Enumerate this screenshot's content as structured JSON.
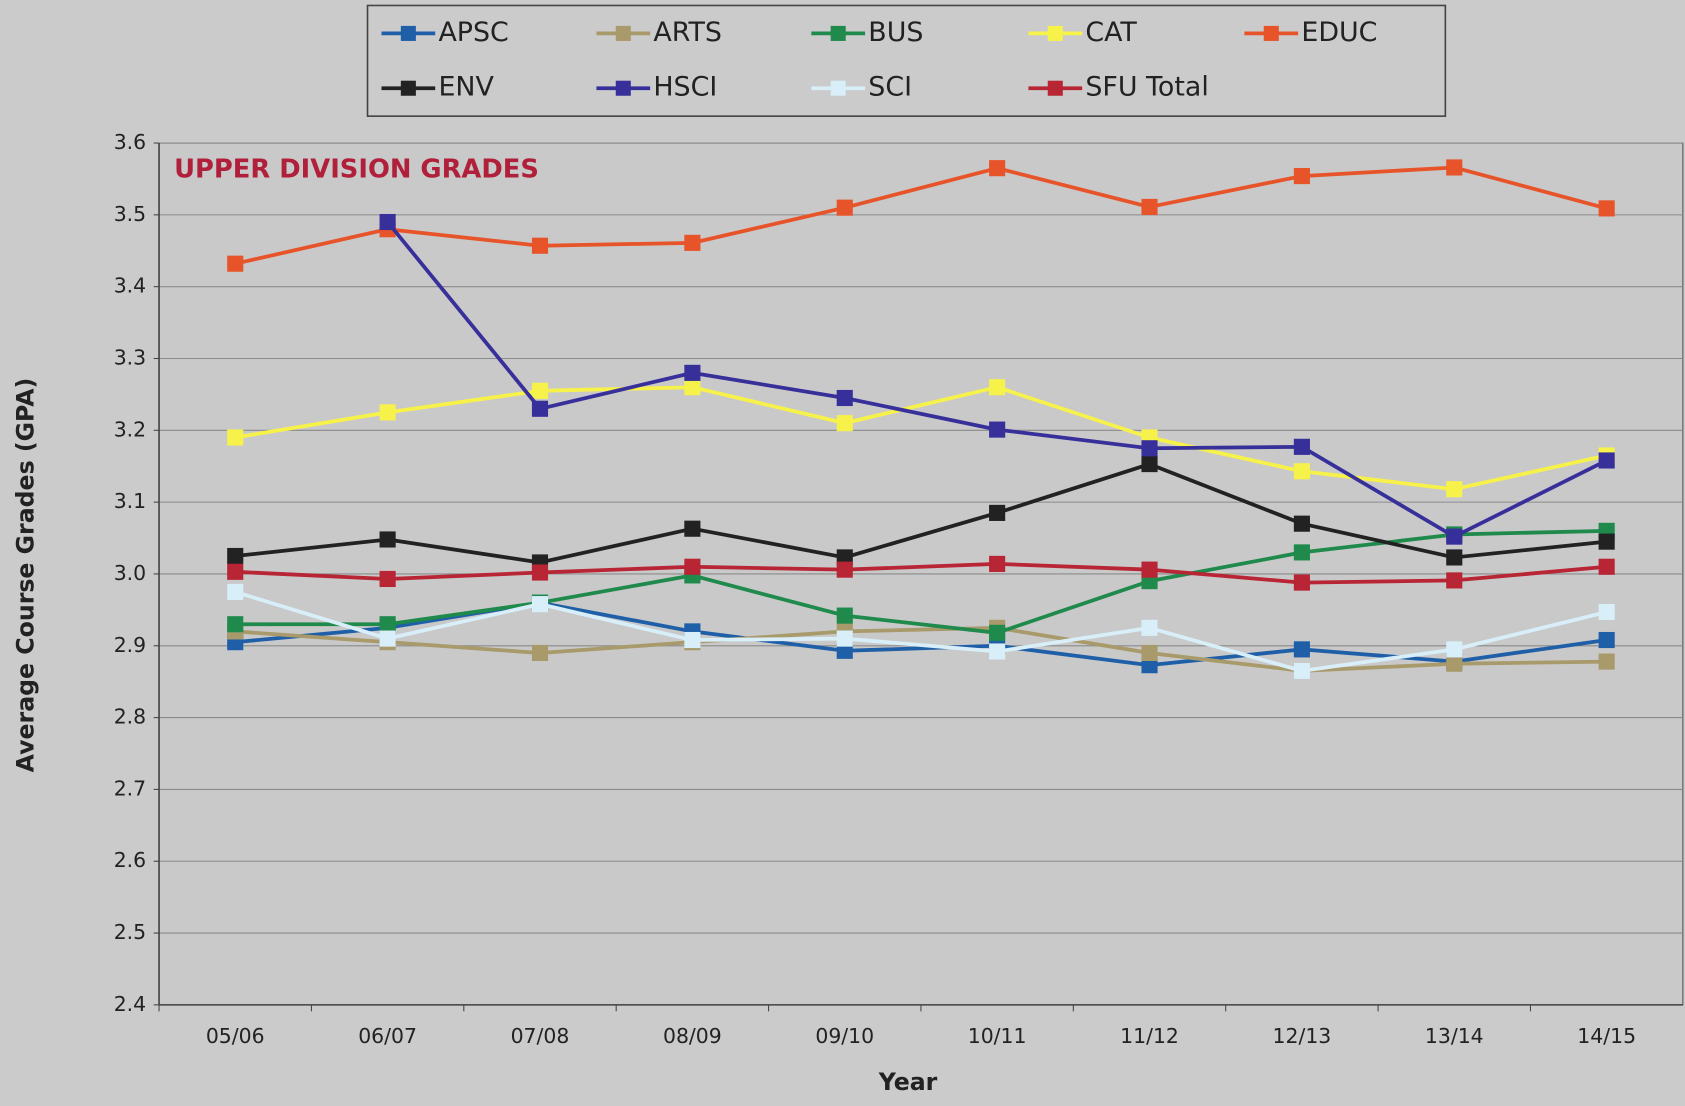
{
  "chart_data": {
    "type": "line",
    "title": "UPPER DIVISION GRADES",
    "xlabel": "Year",
    "ylabel": "Average Course Grades (GPA)",
    "categories": [
      "05/06",
      "06/07",
      "07/08",
      "08/09",
      "09/10",
      "10/11",
      "11/12",
      "12/13",
      "13/14",
      "14/15"
    ],
    "ylim": [
      2.4,
      3.6
    ],
    "yticks": [
      2.4,
      2.5,
      2.6,
      2.7,
      2.8,
      2.9,
      {
        "value": 3,
        "label": "3.0"
      },
      3.1,
      3.2,
      3.3,
      3.4,
      3.5,
      3.6
    ],
    "grid": true,
    "legend": "top",
    "series": [
      {
        "name": "APSC",
        "color": "#1f5fa8",
        "values": [
          2.905,
          2.925,
          2.96,
          2.92,
          2.893,
          2.9,
          2.873,
          2.895,
          2.878,
          2.908
        ]
      },
      {
        "name": "ARTS",
        "color": "#a89a6a",
        "values": [
          2.92,
          2.905,
          2.89,
          2.905,
          2.92,
          2.925,
          2.89,
          2.865,
          2.875,
          2.878
        ]
      },
      {
        "name": "BUS",
        "color": "#1f8a4c",
        "values": [
          2.93,
          2.93,
          2.96,
          2.998,
          2.942,
          2.918,
          2.99,
          3.03,
          3.055,
          3.06
        ]
      },
      {
        "name": "CAT",
        "color": "#f7f24a",
        "values": [
          3.19,
          3.225,
          3.255,
          3.26,
          3.21,
          3.26,
          3.19,
          3.143,
          3.118,
          3.165
        ]
      },
      {
        "name": "EDUC",
        "color": "#e8542a",
        "values": [
          3.432,
          3.48,
          3.457,
          3.461,
          3.51,
          3.565,
          3.511,
          3.554,
          3.566,
          3.509
        ]
      },
      {
        "name": "ENV",
        "color": "#222222",
        "values": [
          3.025,
          3.048,
          3.016,
          3.063,
          3.023,
          3.085,
          3.153,
          3.07,
          3.023,
          3.045
        ]
      },
      {
        "name": "HSCI",
        "color": "#38309a",
        "values": [
          null,
          3.49,
          3.23,
          3.28,
          3.245,
          3.201,
          3.175,
          3.177,
          3.052,
          3.158
        ]
      },
      {
        "name": "SCI",
        "color": "#d8eef8",
        "values": [
          2.975,
          2.91,
          2.958,
          2.908,
          2.91,
          2.892,
          2.925,
          2.865,
          2.895,
          2.947
        ]
      },
      {
        "name": "SFU Total",
        "color": "#b82535",
        "values": [
          3.003,
          2.993,
          3.002,
          3.01,
          3.006,
          3.014,
          3.006,
          2.988,
          2.991,
          3.01
        ]
      }
    ]
  }
}
